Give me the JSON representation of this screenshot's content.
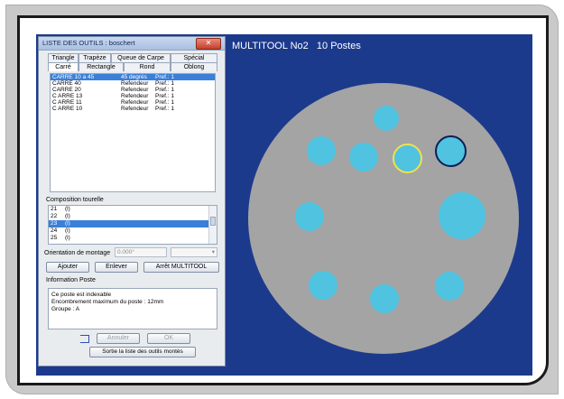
{
  "canvas": {
    "title": "MULTITOOL No2   10 Postes",
    "background": "#1c3a8c",
    "turret_color": "#a4a4a4",
    "hole_color": "#4fc3e0",
    "selected_outline": "#f0e24a"
  },
  "dialog": {
    "title": "LISTE DES OUTILS : boschert",
    "close_icon": "close-icon",
    "tabs_row1": [
      "Triangle",
      "Trapèze",
      "Queue de Carpe",
      "Spécial"
    ],
    "tabs_row2": [
      "Carré",
      "Rectangle",
      "Rond",
      "Oblong"
    ],
    "active_tab": "Carré",
    "tools": [
      {
        "name": "CARRE 10 a 45",
        "type": "45 degrés",
        "pref": "Pref.: 1",
        "selected": true
      },
      {
        "name": "CARRE 40",
        "type": "Refendeur",
        "pref": "Pref.: 1",
        "selected": false
      },
      {
        "name": "CARRE 20",
        "type": "Refendeur",
        "pref": "Pref.: 1",
        "selected": false
      },
      {
        "name": "C ARRE 13",
        "type": "Refendeur",
        "pref": "Pref.: 1",
        "selected": false
      },
      {
        "name": "C ARRE 11",
        "type": "Refendeur",
        "pref": "Pref.: 1",
        "selected": false
      },
      {
        "name": "C ARRE 10",
        "type": "Refendeur",
        "pref": "Pref.: 1",
        "selected": false
      }
    ],
    "composition_label": "Composition tourelle",
    "composition": [
      {
        "n": "21",
        "v": "(l)",
        "selected": false
      },
      {
        "n": "22",
        "v": "(l)",
        "selected": false
      },
      {
        "n": "23",
        "v": "(l)",
        "selected": true
      },
      {
        "n": "24",
        "v": "(l)",
        "selected": false
      },
      {
        "n": "25",
        "v": "(l)",
        "selected": false
      }
    ],
    "orientation_label": "Orientation de montage",
    "orientation_value": "0.000°",
    "buttons": {
      "add": "Ajouter",
      "remove": "Enlever",
      "stop": "Arrêt MULTITOOL",
      "cancel": "Annuler",
      "ok": "OK",
      "exit": "Sortie la liste des outils montés"
    },
    "info_label": "Information Poste",
    "info_lines": [
      "Ce poste est indexable",
      "Encombrement maximum du poste : 12mm",
      "Groupe : A"
    ]
  }
}
